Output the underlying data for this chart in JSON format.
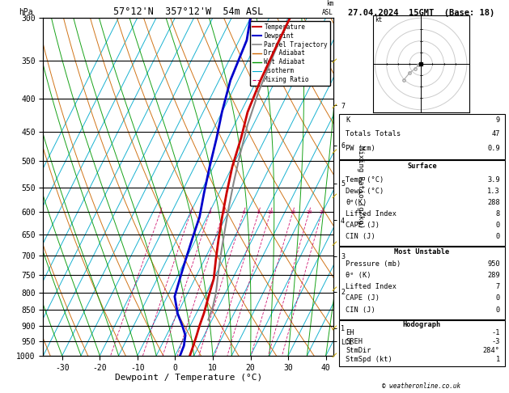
{
  "title_left": "57°12'N  357°12'W  54m ASL",
  "title_right": "27.04.2024  15GMT  (Base: 18)",
  "xlabel": "Dewpoint / Temperature (°C)",
  "pressure_levels": [
    300,
    350,
    400,
    450,
    500,
    550,
    600,
    650,
    700,
    750,
    800,
    850,
    900,
    950,
    1000
  ],
  "pressure_labels": [
    "300",
    "350",
    "400",
    "450",
    "500",
    "550",
    "600",
    "650",
    "700",
    "750",
    "800",
    "850",
    "900",
    "950",
    "1000"
  ],
  "km_labels": [
    "7",
    "6",
    "5",
    "4",
    "3",
    "2",
    "1",
    "LCL"
  ],
  "km_pressures": [
    410,
    473,
    541,
    617,
    701,
    796,
    907,
    950
  ],
  "x_ticks": [
    -30,
    -20,
    -10,
    0,
    10,
    20,
    30,
    40
  ],
  "x_min": -35,
  "x_max": 42,
  "temp_profile_T": [
    -14.5,
    -14.4,
    -14.0,
    -13.2,
    -11.5,
    -10.0,
    -8.0,
    -6.0,
    -4.0,
    -2.0,
    0.0,
    1.0,
    2.0,
    2.5,
    3.0,
    3.5,
    3.9
  ],
  "temp_profile_p": [
    300,
    325,
    375,
    420,
    460,
    510,
    560,
    610,
    660,
    710,
    760,
    810,
    860,
    900,
    930,
    965,
    1000
  ],
  "dewp_profile_T": [
    -25,
    -23,
    -22,
    -20,
    -18,
    -16,
    -14,
    -12,
    -11,
    -10,
    -9,
    -8,
    -5,
    -2,
    0,
    1,
    1.3
  ],
  "dewp_profile_p": [
    300,
    325,
    375,
    420,
    460,
    510,
    560,
    610,
    660,
    710,
    760,
    810,
    860,
    900,
    930,
    965,
    1000
  ],
  "parcel_T": [
    -14.5,
    -14.0,
    -13.0,
    -11.5,
    -9.5,
    -7.5,
    -5.5,
    -3.5,
    -2.0,
    -0.5,
    1.0,
    2.5,
    3.5,
    4.0
  ],
  "parcel_p": [
    300,
    340,
    390,
    440,
    490,
    540,
    590,
    640,
    680,
    720,
    760,
    800,
    840,
    880
  ],
  "color_temp": "#cc0000",
  "color_dewp": "#0000cc",
  "color_parcel": "#888888",
  "color_dry_adiabat": "#cc6600",
  "color_wet_adiabat": "#009900",
  "color_isotherm": "#00aacc",
  "color_mixing": "#cc0066",
  "color_background": "#ffffff",
  "mixing_ratio_values": [
    1,
    2,
    3,
    4,
    6,
    8,
    10,
    15,
    20,
    25
  ],
  "p_min": 300,
  "p_max": 1000,
  "skew_factor": 45,
  "stats_K": 9,
  "stats_TT": 47,
  "stats_PW": 0.9,
  "stats_Temp": 3.9,
  "stats_Dewp": 1.3,
  "stats_theta_e": 288,
  "stats_LI": 8,
  "stats_CAPE": 0,
  "stats_CIN": 0,
  "stats_MU_P": 950,
  "stats_MU_theta_e": 289,
  "stats_MU_LI": 7,
  "stats_MU_CAPE": 0,
  "stats_MU_CIN": 0,
  "stats_EH": -1,
  "stats_SREH": -3,
  "stats_StmDir": "284°",
  "stats_StmSpd": 1,
  "wind_barb_color": "#ccaa00"
}
